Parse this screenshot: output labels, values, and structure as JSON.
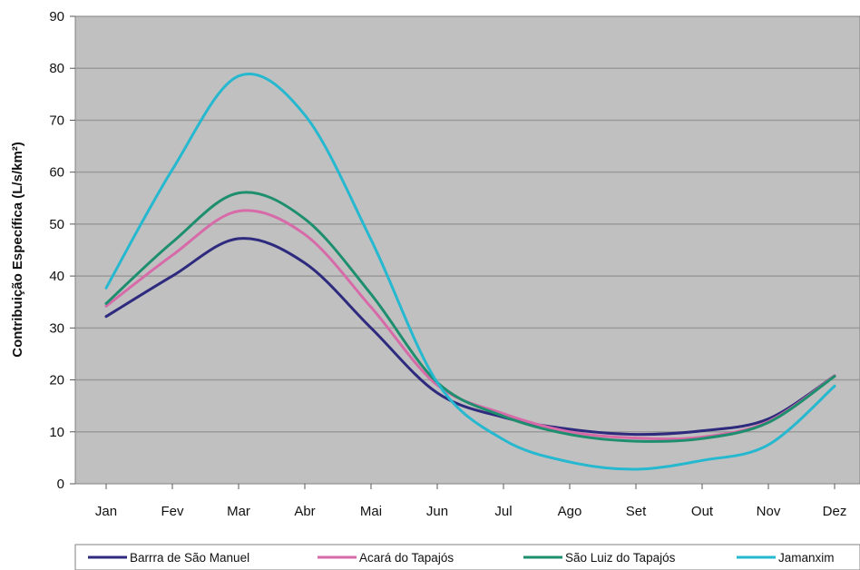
{
  "chart_data": {
    "type": "line",
    "title": "",
    "xlabel": "",
    "ylabel": "Contribuição Específica (L/s/km²)",
    "ylim": [
      0,
      90
    ],
    "yticks": [
      0,
      10,
      20,
      30,
      40,
      50,
      60,
      70,
      80,
      90
    ],
    "grid": true,
    "legend_position": "bottom",
    "categories": [
      "Jan",
      "Fev",
      "Mar",
      "Abr",
      "Mai",
      "Jun",
      "Jul",
      "Ago",
      "Set",
      "Out",
      "Nov",
      "Dez"
    ],
    "series": [
      {
        "name": "Barrra de São Manuel",
        "color": "#2e2a7e",
        "values": [
          32.2,
          40.0,
          47.2,
          42.5,
          30.0,
          17.5,
          12.8,
          10.5,
          9.5,
          10.2,
          12.5,
          20.8
        ]
      },
      {
        "name": "Acará do Tapajós",
        "color": "#d76aa8",
        "values": [
          34.2,
          44.0,
          52.5,
          48.0,
          34.0,
          19.0,
          13.5,
          10.0,
          8.8,
          9.0,
          12.0,
          20.8
        ]
      },
      {
        "name": "São Luiz do Tapajós",
        "color": "#1e8f6e",
        "values": [
          34.7,
          46.5,
          56.0,
          51.0,
          36.5,
          19.5,
          13.0,
          9.5,
          8.2,
          8.7,
          11.8,
          20.7
        ]
      },
      {
        "name": "Jamanxim",
        "color": "#25b8cf",
        "values": [
          37.7,
          60.5,
          78.5,
          71.0,
          47.0,
          19.5,
          8.5,
          4.2,
          2.8,
          4.5,
          7.5,
          18.8
        ]
      }
    ]
  }
}
